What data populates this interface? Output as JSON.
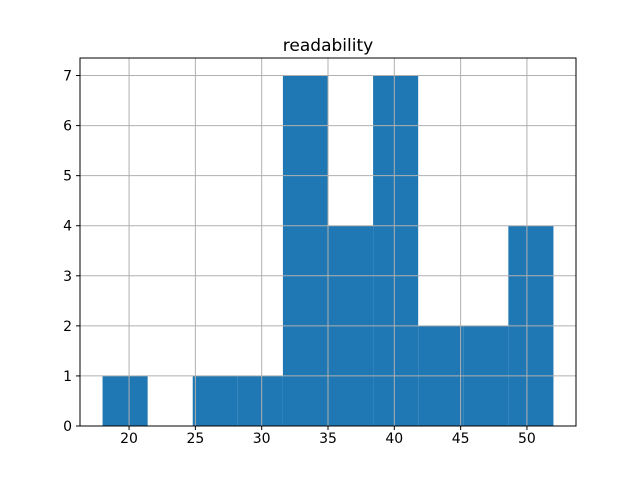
{
  "figure": {
    "background": "#ffffff"
  },
  "chart_data": {
    "type": "bar",
    "subtype": "histogram",
    "title": "readability",
    "xlabel": "",
    "ylabel": "",
    "bin_edges": [
      18.0,
      21.4,
      24.8,
      28.2,
      31.6,
      35.0,
      38.4,
      41.8,
      45.2,
      48.6,
      52.0
    ],
    "counts": [
      1,
      0,
      1,
      1,
      7,
      4,
      7,
      2,
      2,
      4
    ],
    "xticks": [
      20,
      25,
      30,
      35,
      40,
      45,
      50
    ],
    "yticks": [
      0,
      1,
      2,
      3,
      4,
      5,
      6,
      7
    ],
    "xlim": [
      16.3,
      53.7
    ],
    "ylim": [
      0,
      7.35
    ],
    "grid": true,
    "grid_above_bars": true,
    "legend": "none",
    "bar_color": "#1f77b4",
    "grid_color": "#b0b0b0",
    "spine_color": "#000000",
    "tick_color": "#000000",
    "tick_label_color": "#000000",
    "title_color": "#000000"
  }
}
